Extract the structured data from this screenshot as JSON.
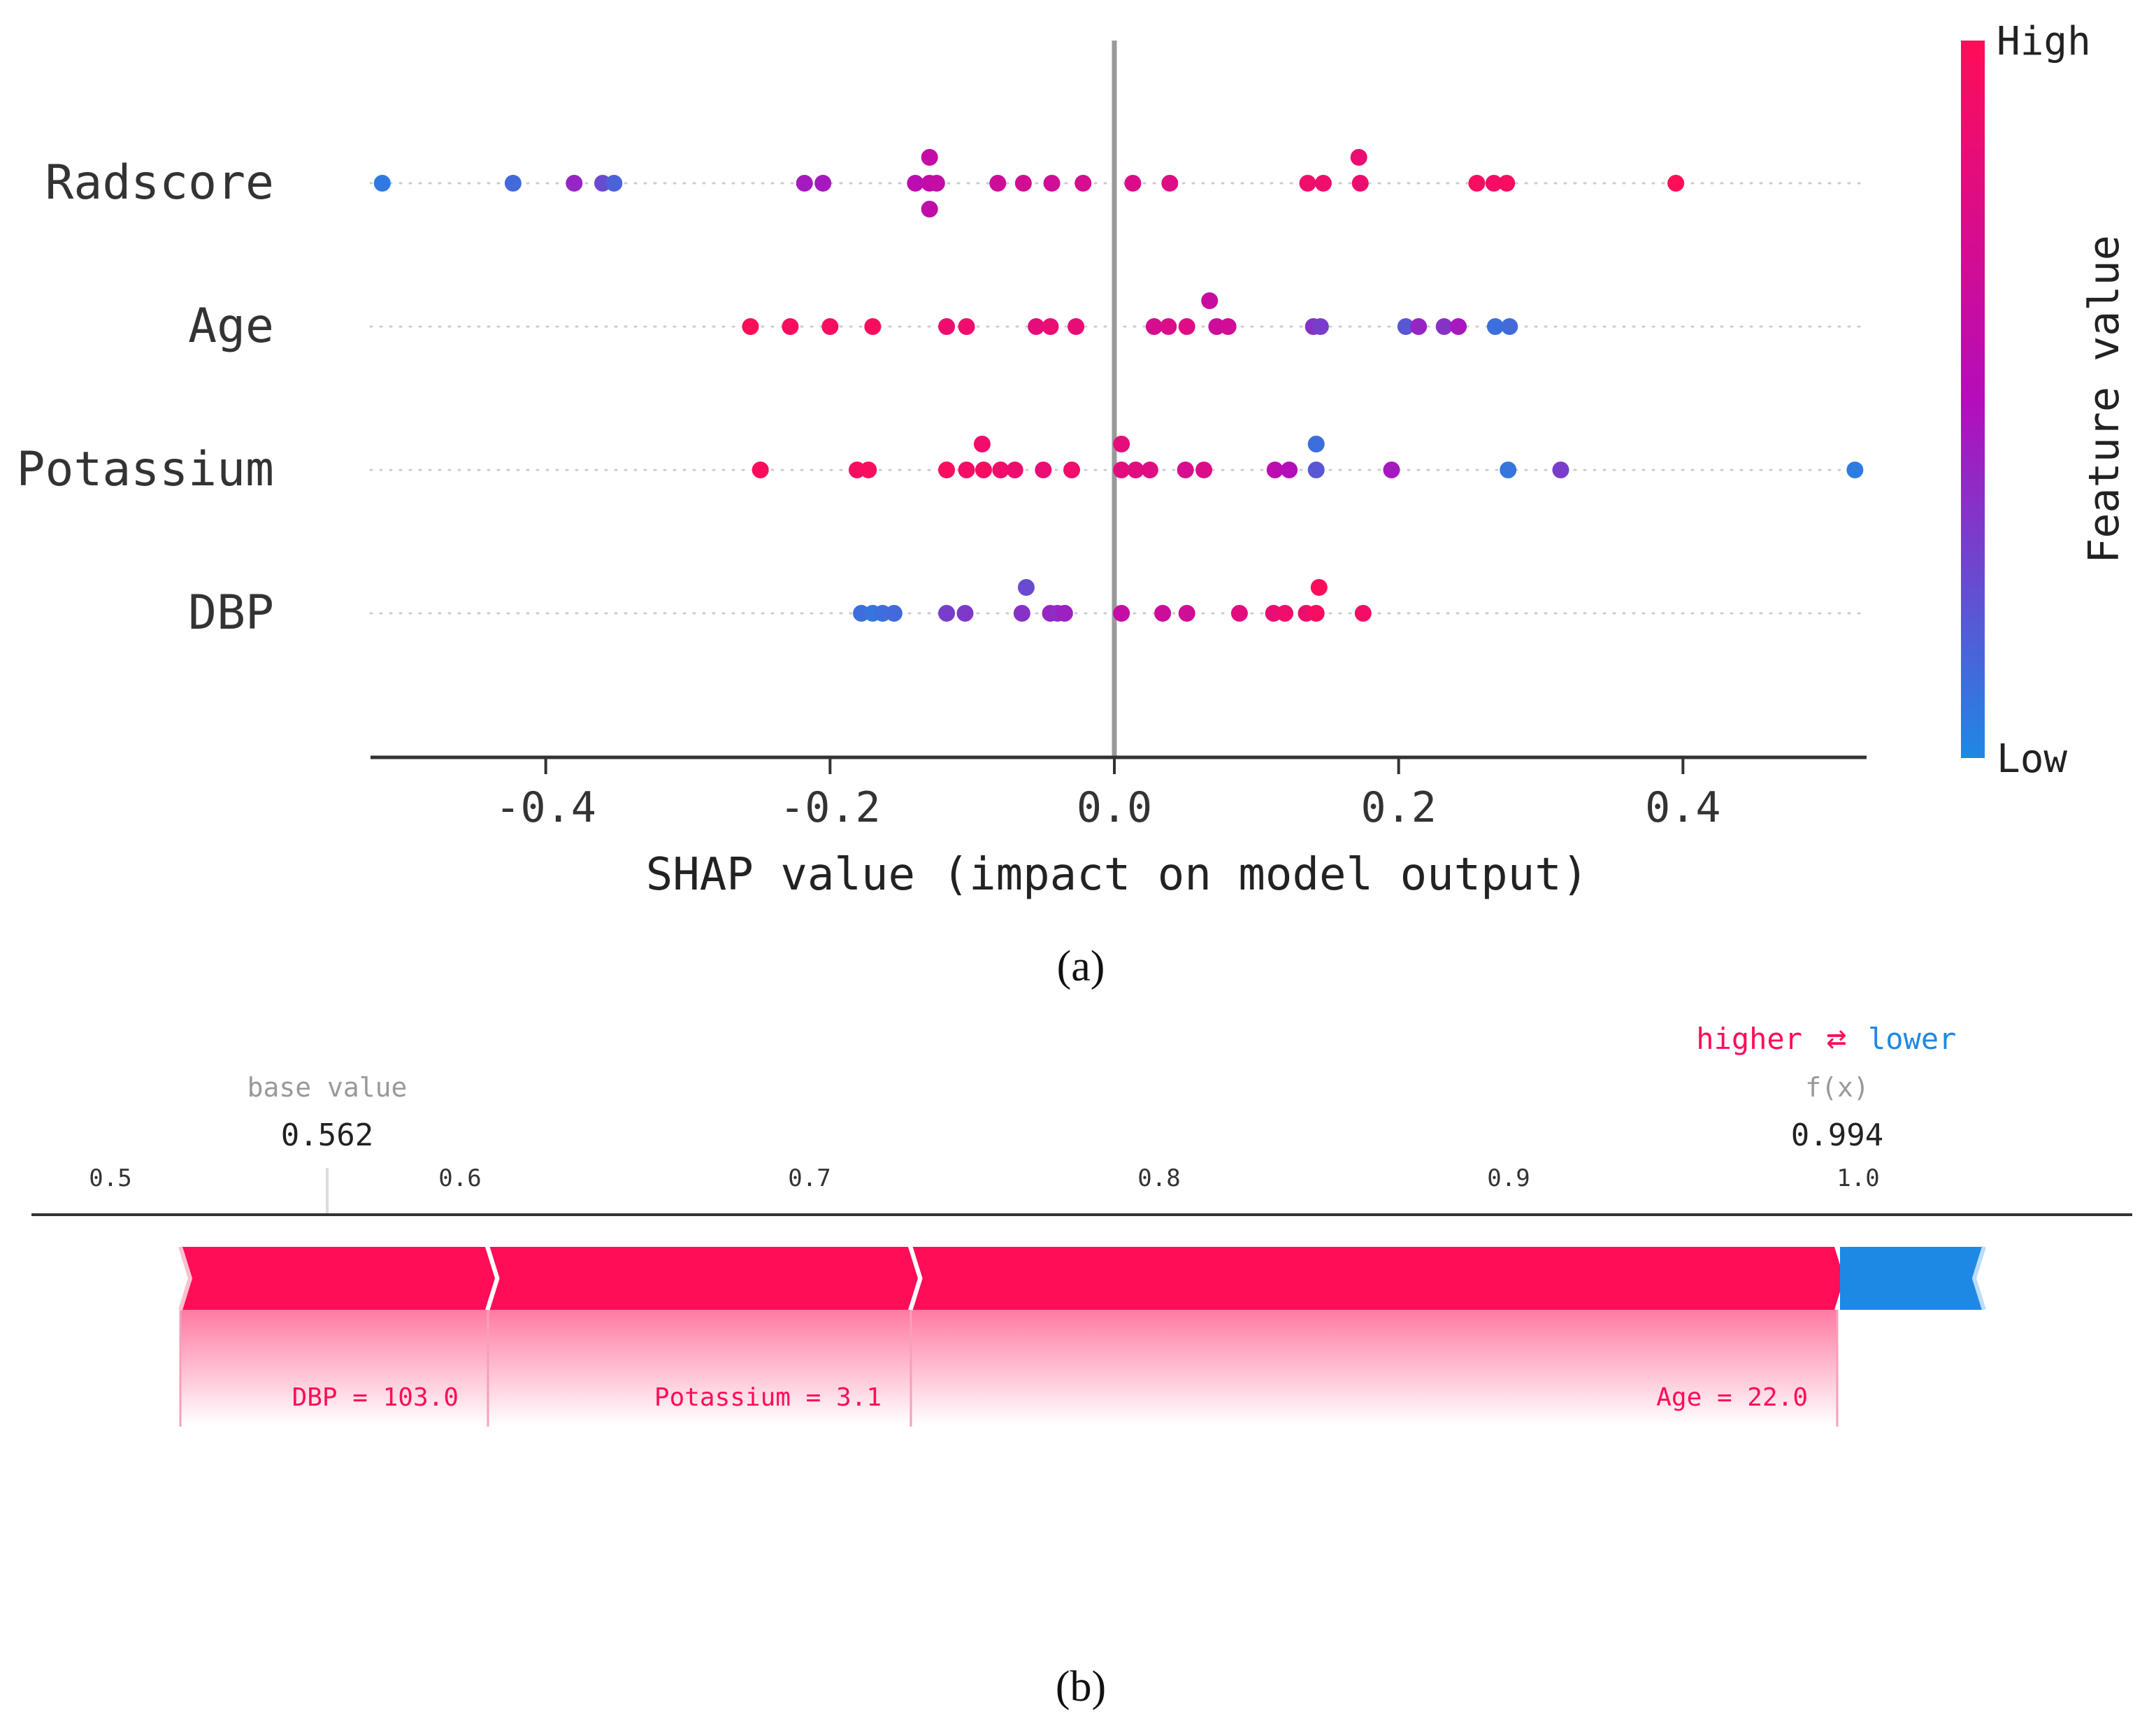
{
  "chart_data": [
    {
      "type": "scatter",
      "subtype": "shap_beeswarm",
      "xlabel": "SHAP value (impact on model output)",
      "xlim": [
        -0.57,
        0.57
      ],
      "xticks": [
        -0.4,
        -0.2,
        0.0,
        0.2,
        0.4
      ],
      "xtick_labels": [
        "-0.4",
        "-0.2",
        "0.0",
        "0.2",
        "0.4"
      ],
      "colorbar": {
        "label": "Feature value",
        "high_label": "High",
        "low_label": "Low",
        "high_color": "#ff0d57",
        "low_color": "#1e88e5"
      },
      "features": [
        {
          "name": "Radscore",
          "points": [
            {
              "x": -0.515,
              "v": 0.06
            },
            {
              "x": -0.423,
              "v": 0.12
            },
            {
              "x": -0.38,
              "v": 0.4
            },
            {
              "x": -0.36,
              "v": 0.25
            },
            {
              "x": -0.352,
              "v": 0.15
            },
            {
              "x": -0.218,
              "v": 0.45
            },
            {
              "x": -0.205,
              "v": 0.45
            },
            {
              "x": -0.14,
              "v": 0.55
            },
            {
              "x": -0.13,
              "v": 0.58
            },
            {
              "x": -0.125,
              "v": 0.6
            },
            {
              "x": -0.13,
              "v": 0.6,
              "row": 1
            },
            {
              "x": -0.13,
              "v": 0.58,
              "row": -1
            },
            {
              "x": -0.082,
              "v": 0.66
            },
            {
              "x": -0.064,
              "v": 0.7
            },
            {
              "x": -0.044,
              "v": 0.68
            },
            {
              "x": -0.022,
              "v": 0.72
            },
            {
              "x": 0.013,
              "v": 0.75
            },
            {
              "x": 0.039,
              "v": 0.78
            },
            {
              "x": 0.136,
              "v": 0.9
            },
            {
              "x": 0.147,
              "v": 0.9
            },
            {
              "x": 0.172,
              "v": 0.86,
              "row": 1
            },
            {
              "x": 0.173,
              "v": 0.88
            },
            {
              "x": 0.255,
              "v": 0.95
            },
            {
              "x": 0.267,
              "v": 0.92
            },
            {
              "x": 0.276,
              "v": 0.95
            },
            {
              "x": 0.395,
              "v": 1.0
            }
          ]
        },
        {
          "name": "Age",
          "points": [
            {
              "x": -0.256,
              "v": 1.0
            },
            {
              "x": -0.228,
              "v": 0.97
            },
            {
              "x": -0.2,
              "v": 0.95
            },
            {
              "x": -0.17,
              "v": 0.96
            },
            {
              "x": -0.118,
              "v": 0.88
            },
            {
              "x": -0.104,
              "v": 0.9
            },
            {
              "x": -0.055,
              "v": 0.82
            },
            {
              "x": -0.045,
              "v": 0.86
            },
            {
              "x": -0.027,
              "v": 0.84
            },
            {
              "x": 0.028,
              "v": 0.72
            },
            {
              "x": 0.038,
              "v": 0.75
            },
            {
              "x": 0.051,
              "v": 0.78
            },
            {
              "x": 0.067,
              "v": 0.62,
              "row": 1
            },
            {
              "x": 0.072,
              "v": 0.65
            },
            {
              "x": 0.08,
              "v": 0.68
            },
            {
              "x": 0.14,
              "v": 0.35
            },
            {
              "x": 0.145,
              "v": 0.3
            },
            {
              "x": 0.205,
              "v": 0.2
            },
            {
              "x": 0.214,
              "v": 0.4
            },
            {
              "x": 0.232,
              "v": 0.35
            },
            {
              "x": 0.242,
              "v": 0.45
            },
            {
              "x": 0.268,
              "v": 0.1
            },
            {
              "x": 0.278,
              "v": 0.12
            }
          ]
        },
        {
          "name": "Potassium",
          "points": [
            {
              "x": -0.249,
              "v": 0.98
            },
            {
              "x": -0.181,
              "v": 0.95
            },
            {
              "x": -0.173,
              "v": 0.96
            },
            {
              "x": -0.093,
              "v": 0.9,
              "row": 1
            },
            {
              "x": -0.118,
              "v": 0.96
            },
            {
              "x": -0.104,
              "v": 0.92
            },
            {
              "x": -0.092,
              "v": 0.94
            },
            {
              "x": -0.08,
              "v": 0.9
            },
            {
              "x": -0.07,
              "v": 0.88
            },
            {
              "x": -0.05,
              "v": 0.85
            },
            {
              "x": -0.03,
              "v": 0.9
            },
            {
              "x": 0.005,
              "v": 0.8
            },
            {
              "x": 0.005,
              "v": 0.82,
              "row": 1
            },
            {
              "x": 0.015,
              "v": 0.8
            },
            {
              "x": 0.025,
              "v": 0.78
            },
            {
              "x": 0.05,
              "v": 0.72
            },
            {
              "x": 0.063,
              "v": 0.75
            },
            {
              "x": 0.113,
              "v": 0.55
            },
            {
              "x": 0.123,
              "v": 0.5
            },
            {
              "x": 0.142,
              "v": 0.1,
              "row": 1
            },
            {
              "x": 0.142,
              "v": 0.2
            },
            {
              "x": 0.195,
              "v": 0.45
            },
            {
              "x": 0.277,
              "v": 0.08
            },
            {
              "x": 0.314,
              "v": 0.3
            },
            {
              "x": 0.521,
              "v": 0.05
            }
          ]
        },
        {
          "name": "DBP",
          "points": [
            {
              "x": -0.178,
              "v": 0.1
            },
            {
              "x": -0.17,
              "v": 0.08
            },
            {
              "x": -0.163,
              "v": 0.1
            },
            {
              "x": -0.155,
              "v": 0.12
            },
            {
              "x": -0.118,
              "v": 0.3
            },
            {
              "x": -0.105,
              "v": 0.32
            },
            {
              "x": -0.065,
              "v": 0.35
            },
            {
              "x": -0.062,
              "v": 0.25,
              "row": 1
            },
            {
              "x": -0.045,
              "v": 0.4
            },
            {
              "x": -0.04,
              "v": 0.38
            },
            {
              "x": -0.035,
              "v": 0.42
            },
            {
              "x": 0.005,
              "v": 0.6
            },
            {
              "x": 0.034,
              "v": 0.65
            },
            {
              "x": 0.051,
              "v": 0.68
            },
            {
              "x": 0.088,
              "v": 0.8
            },
            {
              "x": 0.112,
              "v": 0.85
            },
            {
              "x": 0.12,
              "v": 0.9
            },
            {
              "x": 0.135,
              "v": 0.88
            },
            {
              "x": 0.142,
              "v": 0.95
            },
            {
              "x": 0.144,
              "v": 0.98,
              "row": 1
            },
            {
              "x": 0.175,
              "v": 0.92
            }
          ]
        }
      ]
    },
    {
      "type": "bar",
      "subtype": "shap_force_plot",
      "xlim": [
        0.5,
        1.0
      ],
      "xticks": [
        0.5,
        0.6,
        0.7,
        0.8,
        0.9,
        1.0
      ],
      "xtick_labels": [
        "0.5",
        "0.6",
        "0.7",
        "0.8",
        "0.9",
        "1.0"
      ],
      "base_value": 0.562,
      "base_value_label": "base value",
      "base_value_text": "0.562",
      "fx": 0.994,
      "fx_label": "f(x)",
      "fx_text": "0.994",
      "legend": {
        "higher": "higher",
        "lower": "lower",
        "arrows": "⇄"
      },
      "contributions": [
        {
          "label": "DBP = 103.0",
          "start": 0.52,
          "end": 0.608,
          "direction": "higher"
        },
        {
          "label": "Potassium = 3.1",
          "start": 0.608,
          "end": 0.729,
          "direction": "higher"
        },
        {
          "label": "Age = 22.0",
          "start": 0.729,
          "end": 0.994,
          "direction": "higher"
        },
        {
          "label": "",
          "start": 0.994,
          "end": 1.036,
          "direction": "lower"
        }
      ],
      "colors": {
        "higher": "#ff0d57",
        "lower": "#1e88e5",
        "base_text": "#999999"
      }
    }
  ],
  "captions": {
    "a": "(a)",
    "b": "(b)"
  }
}
